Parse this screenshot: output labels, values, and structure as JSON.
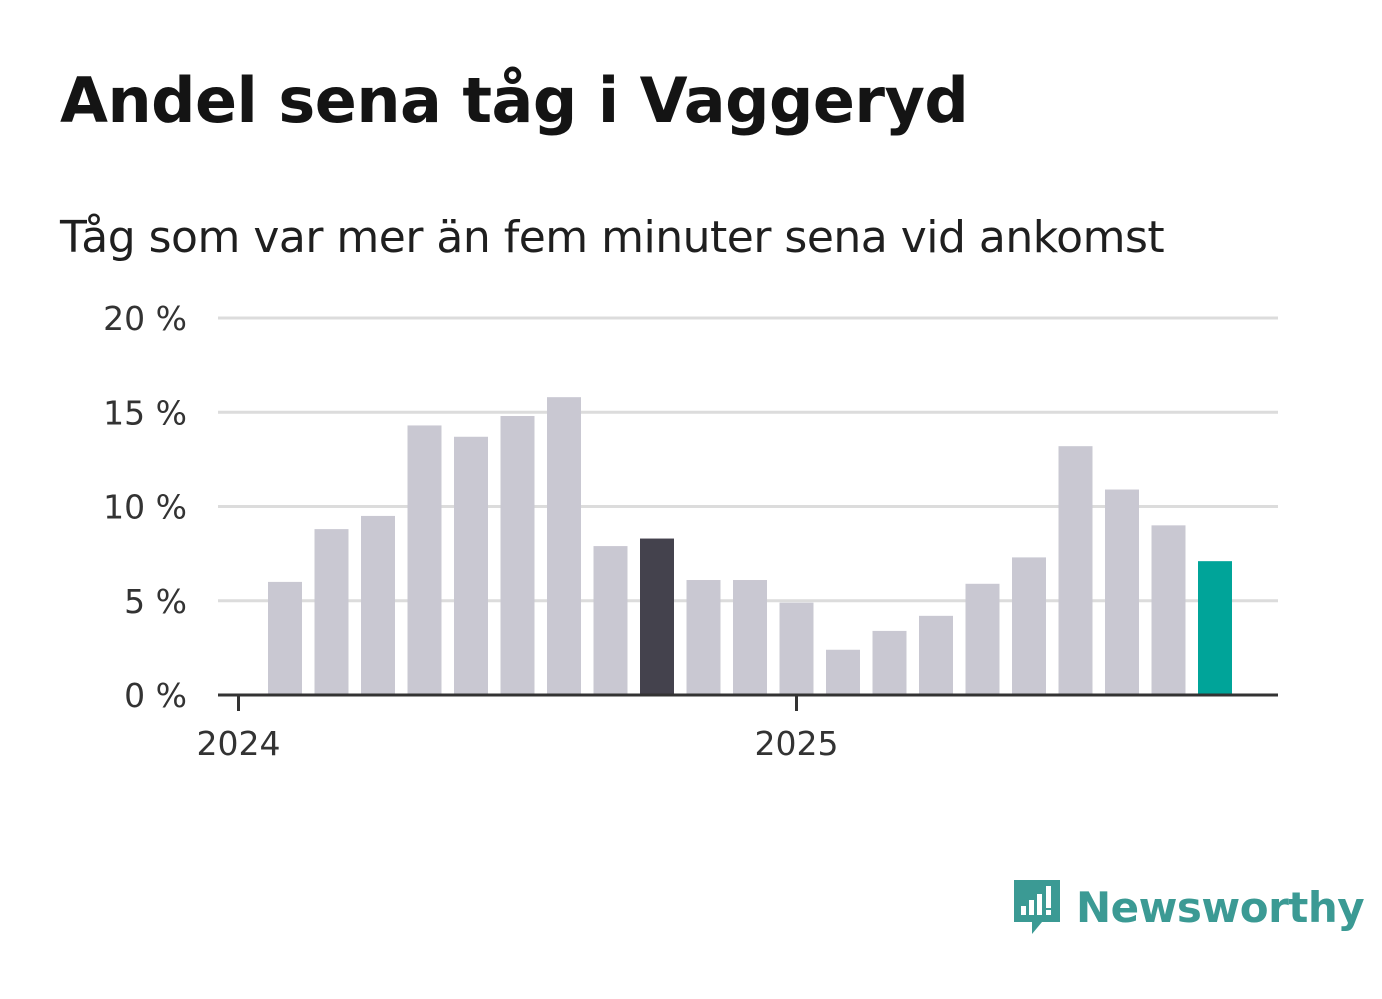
{
  "chart_data": {
    "type": "bar",
    "title": "Andel sena tåg i Vaggeryd",
    "subtitle": "Tåg som var mer än fem minuter sena vid ankomst",
    "xlabel": "",
    "ylabel": "",
    "ylim": [
      0,
      20
    ],
    "y_ticks": [
      "0 %",
      "5 %",
      "10 %",
      "15 %",
      "20 %"
    ],
    "y_tick_values": [
      0,
      5,
      10,
      15,
      20
    ],
    "x_tick_labels": [
      {
        "label": "2024",
        "category": "2024-01"
      },
      {
        "label": "2025",
        "category": "2025-01"
      }
    ],
    "grid": true,
    "categories": [
      "2024-02",
      "2024-03",
      "2024-04",
      "2024-05",
      "2024-06",
      "2024-07",
      "2024-08",
      "2024-09",
      "2024-10",
      "2024-11",
      "2024-12",
      "2025-01",
      "2025-02",
      "2025-03",
      "2025-04",
      "2025-05",
      "2025-06",
      "2025-07",
      "2025-08",
      "2025-09",
      "2025-10"
    ],
    "values": [
      6.0,
      8.8,
      9.5,
      14.3,
      13.7,
      14.8,
      15.8,
      7.9,
      8.3,
      6.1,
      6.1,
      4.9,
      2.4,
      3.4,
      4.2,
      5.9,
      7.3,
      13.2,
      10.9,
      9.0,
      7.1
    ],
    "colors": {
      "default": "#c9c8d2",
      "highlight_dark": "#44424d",
      "highlight_latest": "#00a499",
      "grid": "#dcdcdc",
      "axis": "#333333"
    },
    "highlight_dark_category": "2024-10",
    "highlight_latest_category": "2025-10"
  },
  "brand": {
    "name": "Newsworthy",
    "icon": "newsworthy-logo-icon",
    "color": "#3b9a94"
  }
}
